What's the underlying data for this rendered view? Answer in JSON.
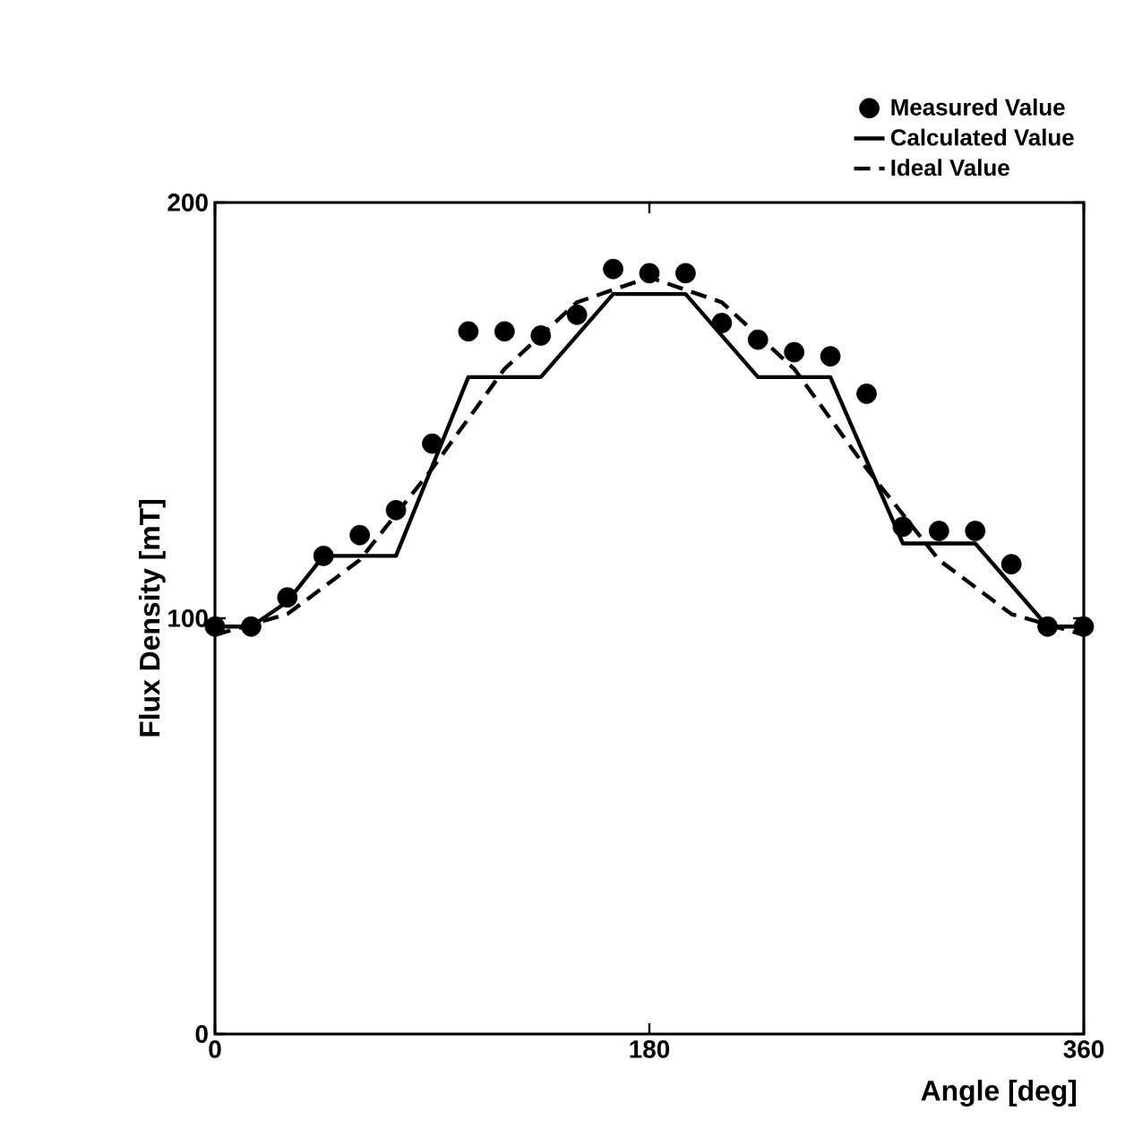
{
  "chart_data": {
    "type": "line",
    "xlabel": "Angle [deg]",
    "ylabel": "Flux Density [mT]",
    "xlim": [
      0,
      360
    ],
    "ylim": [
      0,
      200
    ],
    "xticks": [
      0,
      180,
      360
    ],
    "yticks": [
      0,
      100,
      200
    ],
    "grid": false,
    "legend": "top right",
    "series": [
      {
        "name": "Measured Value",
        "type": "scatter",
        "marker": "circle",
        "color": "#000000",
        "x": [
          0,
          15,
          30,
          45,
          60,
          75,
          90,
          105,
          120,
          135,
          150,
          165,
          180,
          195,
          210,
          225,
          240,
          255,
          270,
          285,
          300,
          315,
          330,
          345,
          360
        ],
        "values": [
          98,
          98,
          105,
          115,
          120,
          126,
          142,
          169,
          169,
          168,
          173,
          184,
          183,
          183,
          171,
          167,
          164,
          163,
          154,
          122,
          121,
          121,
          113,
          98,
          98
        ]
      },
      {
        "name": "Calculated Value",
        "line_style": "solid",
        "color": "#000000",
        "x": [
          0,
          15,
          30,
          45,
          75,
          105,
          135,
          165,
          195,
          225,
          255,
          285,
          315,
          345,
          360
        ],
        "values": [
          98,
          98,
          104,
          115,
          115,
          158,
          158,
          178,
          178,
          158,
          158,
          118,
          118,
          98,
          98
        ]
      },
      {
        "name": "Ideal Value",
        "line_style": "dashed",
        "color": "#000000",
        "x": [
          0,
          30,
          60,
          90,
          120,
          150,
          180,
          210,
          240,
          270,
          300,
          330,
          360
        ],
        "values": [
          96,
          101,
          114,
          136,
          160,
          176,
          182,
          176,
          160,
          136,
          114,
          101,
          96
        ]
      }
    ]
  }
}
